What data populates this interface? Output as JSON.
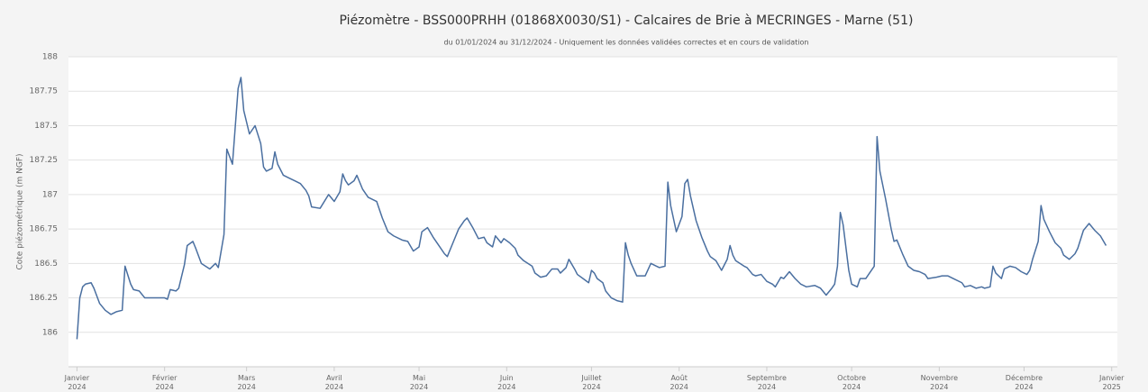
{
  "chart_data": {
    "type": "line",
    "title": "Piézomètre - BSS000PRHH (01868X0030/S1) - Calcaires de Brie à MECRINGES - Marne (51)",
    "subtitle": "du 01/01/2024 au 31/12/2024 - Uniquement les données validées correctes et en cours de validation",
    "y_label": "Cote piézométrique (m NGF)",
    "color": "#4a6fa0",
    "grid": true,
    "ylim": [
      185.75,
      188
    ],
    "yticks": [
      186,
      186.25,
      186.5,
      186.75,
      187,
      187.25,
      187.5,
      187.75,
      188
    ],
    "xlim": [
      -3,
      368
    ],
    "xticks": [
      {
        "value": 0,
        "label": "Janvier\n2024"
      },
      {
        "value": 31,
        "label": "Février\n2024"
      },
      {
        "value": 60,
        "label": "Mars\n2024"
      },
      {
        "value": 91,
        "label": "Avril\n2024"
      },
      {
        "value": 121,
        "label": "Mai\n2024"
      },
      {
        "value": 152,
        "label": "Juin\n2024"
      },
      {
        "value": 182,
        "label": "Juillet\n2024"
      },
      {
        "value": 213,
        "label": "Août\n2024"
      },
      {
        "value": 244,
        "label": "Septembre\n2024"
      },
      {
        "value": 274,
        "label": "Octobre\n2024"
      },
      {
        "value": 305,
        "label": "Novembre\n2024"
      },
      {
        "value": 335,
        "label": "Décembre\n2024"
      },
      {
        "value": 366,
        "label": "Janvier\n2025"
      }
    ],
    "x": [
      0,
      1,
      2,
      3,
      5,
      6,
      8,
      10,
      12,
      14,
      16,
      17,
      19,
      20,
      22,
      24,
      27,
      31,
      32,
      33,
      35,
      36,
      38,
      39,
      41,
      42,
      44,
      47,
      49,
      50,
      52,
      53,
      55,
      57,
      58,
      59,
      61,
      63,
      65,
      66,
      67,
      69,
      70,
      71,
      73,
      75,
      77,
      79,
      81,
      82,
      83,
      86,
      89,
      91,
      93,
      94,
      95,
      96,
      98,
      99,
      101,
      103,
      106,
      108,
      110,
      112,
      115,
      117,
      119,
      121,
      122,
      124,
      126,
      128,
      130,
      131,
      133,
      135,
      137,
      138,
      140,
      142,
      144,
      145,
      147,
      148,
      150,
      151,
      153,
      155,
      156,
      158,
      161,
      162,
      164,
      166,
      168,
      170,
      171,
      173,
      174,
      176,
      177,
      179,
      181,
      182,
      183,
      184,
      186,
      187,
      189,
      191,
      193,
      194,
      195,
      196,
      198,
      201,
      203,
      205,
      206,
      208,
      209,
      210,
      212,
      214,
      215,
      216,
      217,
      219,
      221,
      223,
      224,
      226,
      228,
      230,
      231,
      232,
      233,
      236,
      237,
      239,
      240,
      242,
      244,
      246,
      247,
      249,
      250,
      252,
      254,
      256,
      258,
      261,
      263,
      265,
      267,
      268,
      269,
      270,
      271,
      273,
      274,
      276,
      277,
      279,
      280,
      282,
      283,
      284,
      286,
      288,
      289,
      290,
      292,
      294,
      296,
      298,
      300,
      301,
      304,
      306,
      308,
      310,
      313,
      314,
      316,
      318,
      320,
      321,
      323,
      324,
      325,
      327,
      328,
      330,
      332,
      334,
      336,
      337,
      338,
      340,
      341,
      342,
      344,
      346,
      348,
      349,
      351,
      353,
      354,
      356,
      358,
      360,
      362,
      364
    ],
    "values": [
      185.95,
      186.25,
      186.33,
      186.35,
      186.36,
      186.32,
      186.21,
      186.16,
      186.13,
      186.15,
      186.16,
      186.48,
      186.35,
      186.31,
      186.3,
      186.25,
      186.25,
      186.25,
      186.24,
      186.31,
      186.3,
      186.32,
      186.49,
      186.63,
      186.66,
      186.61,
      186.5,
      186.46,
      186.5,
      186.47,
      186.71,
      187.33,
      187.22,
      187.77,
      187.85,
      187.61,
      187.44,
      187.5,
      187.37,
      187.2,
      187.17,
      187.19,
      187.31,
      187.22,
      187.14,
      187.12,
      187.1,
      187.08,
      187.03,
      186.99,
      186.91,
      186.9,
      187.0,
      186.95,
      187.02,
      187.15,
      187.1,
      187.07,
      187.1,
      187.14,
      187.04,
      186.98,
      186.95,
      186.83,
      186.73,
      186.7,
      186.67,
      186.66,
      186.59,
      186.62,
      186.73,
      186.76,
      186.69,
      186.63,
      186.57,
      186.55,
      186.65,
      186.75,
      186.81,
      186.83,
      186.76,
      186.68,
      186.69,
      186.65,
      186.62,
      186.7,
      186.65,
      186.68,
      186.65,
      186.61,
      186.56,
      186.52,
      186.48,
      186.43,
      186.4,
      186.41,
      186.46,
      186.46,
      186.43,
      186.47,
      186.53,
      186.46,
      186.42,
      186.39,
      186.36,
      186.45,
      186.43,
      186.39,
      186.36,
      186.3,
      186.25,
      186.23,
      186.22,
      186.65,
      186.56,
      186.5,
      186.41,
      186.41,
      186.5,
      186.48,
      186.47,
      186.48,
      187.09,
      186.92,
      186.73,
      186.84,
      187.08,
      187.11,
      186.99,
      186.81,
      186.69,
      186.59,
      186.55,
      186.52,
      186.45,
      186.53,
      186.63,
      186.56,
      186.52,
      186.48,
      186.47,
      186.42,
      186.41,
      186.42,
      186.37,
      186.35,
      186.33,
      186.4,
      186.39,
      186.44,
      186.39,
      186.35,
      186.33,
      186.34,
      186.32,
      186.27,
      186.32,
      186.35,
      186.48,
      186.87,
      186.78,
      186.45,
      186.35,
      186.33,
      186.39,
      186.39,
      186.42,
      186.48,
      187.42,
      187.17,
      186.97,
      186.75,
      186.66,
      186.67,
      186.57,
      186.48,
      186.45,
      186.44,
      186.42,
      186.39,
      186.4,
      186.41,
      186.41,
      186.39,
      186.36,
      186.33,
      186.34,
      186.32,
      186.33,
      186.32,
      186.33,
      186.48,
      186.43,
      186.39,
      186.46,
      186.48,
      186.47,
      186.44,
      186.42,
      186.45,
      186.53,
      186.66,
      186.92,
      186.82,
      186.73,
      186.65,
      186.61,
      186.56,
      186.53,
      186.57,
      186.61,
      186.74,
      186.79,
      186.74,
      186.7,
      186.63
    ]
  }
}
